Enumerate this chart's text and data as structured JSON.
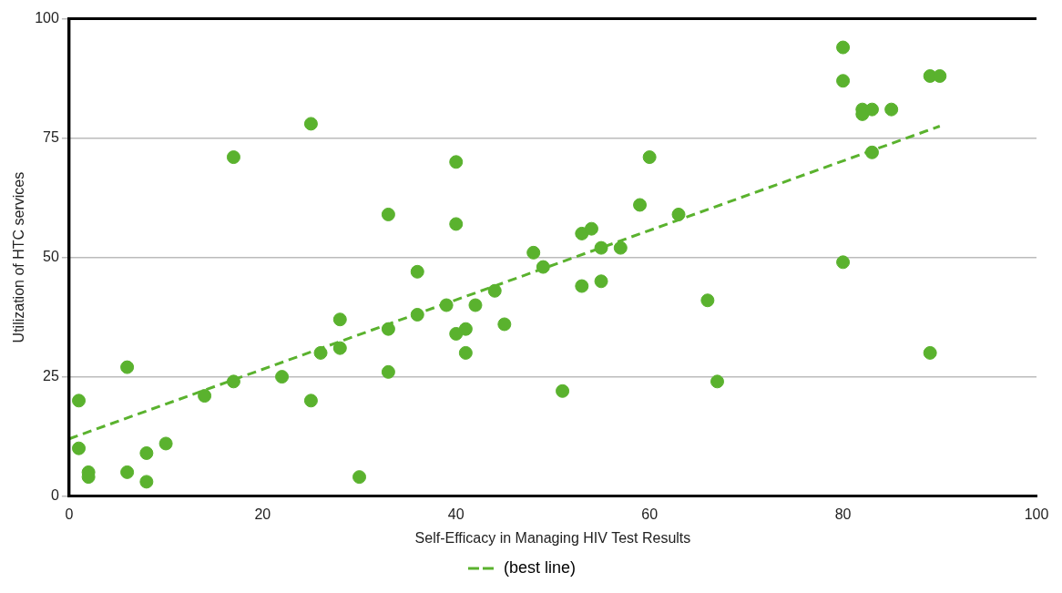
{
  "chart_data": {
    "type": "scatter",
    "xlabel": "Self-Efficacy in Managing HIV Test Results",
    "ylabel": "Utilization of HTC services",
    "xlim": [
      0,
      100
    ],
    "xticks": [
      0,
      20,
      40,
      60,
      80,
      100
    ],
    "ylim": [
      0,
      100
    ],
    "yticks": [
      0,
      25,
      50,
      75,
      100
    ],
    "grid": "y",
    "legend": "bottom",
    "marker": "circle",
    "series": [
      {
        "color": "#5ab22e",
        "x": [
          1,
          1,
          2,
          2,
          6,
          6,
          8,
          8,
          10,
          14,
          17,
          17,
          22,
          25,
          25,
          26,
          28,
          28,
          30,
          33,
          33,
          33,
          36,
          36,
          39,
          40,
          40,
          40,
          41,
          41,
          42,
          44,
          45,
          48,
          49,
          51,
          53,
          54,
          53,
          55,
          55,
          57,
          59,
          60,
          63,
          66,
          67,
          80,
          80,
          80,
          82,
          82,
          83,
          83,
          85,
          89,
          90,
          89
        ],
        "values": [
          20,
          10,
          5,
          4,
          27,
          5,
          9,
          3,
          11,
          21,
          71,
          24,
          25,
          78,
          20,
          30,
          37,
          31,
          4,
          59,
          35,
          26,
          47,
          38,
          40,
          70,
          57,
          34,
          35,
          30,
          40,
          43,
          36,
          51,
          48,
          22,
          55,
          56,
          44,
          52,
          45,
          52,
          61,
          71,
          59,
          41,
          24,
          94,
          87,
          49,
          81,
          80,
          81,
          72,
          81,
          88,
          88,
          30
        ]
      },
      {
        "type": "line",
        "name": "(best line)",
        "color": "#5ab22e",
        "line_style": "dashed",
        "marker": "none",
        "x": [
          0,
          90
        ],
        "values": [
          12,
          77.5
        ]
      }
    ]
  }
}
